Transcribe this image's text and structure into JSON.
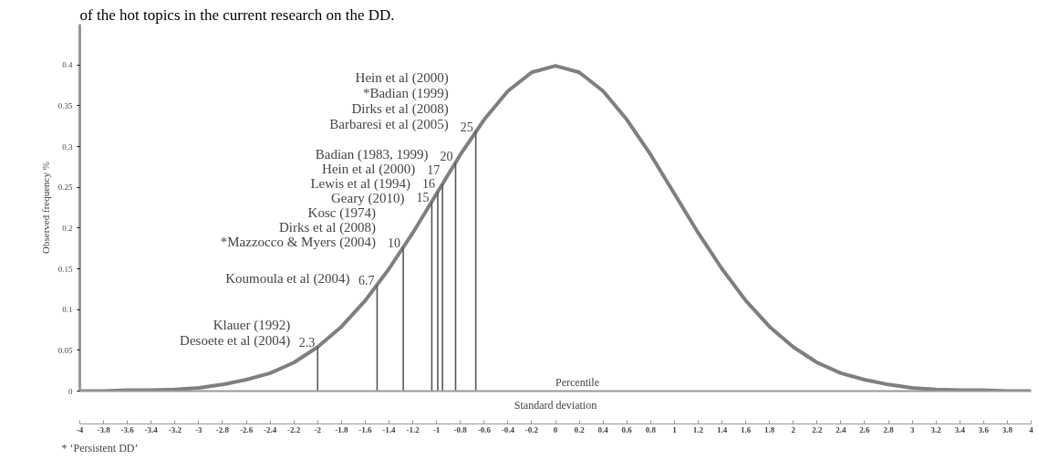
{
  "chart_data": {
    "type": "line",
    "xlabel": "Standard deviation",
    "ylabel": "Observed frequency %",
    "x": [
      -4,
      -3.8,
      -3.6,
      -3.4,
      -3.2,
      -3,
      -2.8,
      -2.6,
      -2.4,
      -2.2,
      -2,
      -1.8,
      -1.6,
      -1.4,
      -1.2,
      -1,
      -0.8,
      -0.6,
      -0.4,
      -0.2,
      0,
      0.2,
      0.4,
      0.6,
      0.8,
      1,
      1.2,
      1.4,
      1.6,
      1.8,
      2,
      2.2,
      2.4,
      2.6,
      2.8,
      3,
      3.2,
      3.4,
      3.6,
      3.8,
      4
    ],
    "series": [
      {
        "color": "#7f7f7f",
        "values": [
          0.0,
          0.0,
          0.001,
          0.001,
          0.002,
          0.004,
          0.008,
          0.014,
          0.022,
          0.035,
          0.054,
          0.079,
          0.111,
          0.15,
          0.194,
          0.242,
          0.29,
          0.333,
          0.368,
          0.391,
          0.399,
          0.391,
          0.368,
          0.333,
          0.29,
          0.242,
          0.194,
          0.15,
          0.111,
          0.079,
          0.054,
          0.035,
          0.022,
          0.014,
          0.008,
          0.004,
          0.002,
          0.001,
          0.001,
          0.0,
          0.0
        ]
      },
      {
        "type": "bar",
        "color": "#555555",
        "x": [
          -2,
          -1.5,
          -1.28,
          -1.04,
          -0.99,
          -0.95,
          -0.84,
          -0.67
        ],
        "values": [
          0.054,
          0.13,
          0.176,
          0.232,
          0.244,
          0.254,
          0.28,
          0.319
        ]
      }
    ],
    "xlim": [
      -4,
      4
    ],
    "ylim": [
      0,
      0.45
    ],
    "xticks": [
      -4,
      -3.8,
      -3.6,
      -3.4,
      -3.2,
      -3,
      -2.8,
      -2.6,
      -2.4,
      -2.2,
      -2,
      -1.8,
      -1.6,
      -1.4,
      -1.2,
      -1,
      -0.8,
      -0.6,
      -0.4,
      -0.2,
      0,
      0.2,
      0.4,
      0.6,
      0.8,
      1,
      1.2,
      1.4,
      1.6,
      1.8,
      2,
      2.2,
      2.4,
      2.6,
      2.8,
      3,
      3.2,
      3.4,
      3.6,
      3.8,
      4
    ],
    "yticks": [
      0,
      0.05,
      0.1,
      0.15,
      0.2,
      0.25,
      0.3,
      0.35,
      0.4
    ],
    "grid": false,
    "marker": "none",
    "line_style": "solid",
    "annotations": [
      "of the hot topics in the current research on the DD.",
      "Percentile",
      "* ‘Persistent DD’",
      {
        "text": "25",
        "x": -0.67,
        "y": 0.319
      },
      "Hein et al (2000)",
      "*Badian (1999)",
      "Dirks et al (2008)",
      "Barbaresi et al (2005)",
      {
        "text": "20",
        "x": -0.84,
        "y": 0.28
      },
      "Badian (1983, 1999)",
      {
        "text": "17",
        "x": -0.95,
        "y": 0.254
      },
      "Hein et al (2000)",
      {
        "text": "16",
        "x": -0.99,
        "y": 0.244
      },
      "Lewis et al (1994)",
      {
        "text": "15",
        "x": -1.04,
        "y": 0.232
      },
      "Geary (2010)",
      {
        "text": "10",
        "x": -1.28,
        "y": 0.176
      },
      "Kosc (1974)",
      "Dirks et al (2008)",
      "*Mazzocco & Myers (2004)",
      {
        "text": "6.7",
        "x": -1.5,
        "y": 0.13
      },
      "Koumoula et al (2004)",
      {
        "text": "2.3",
        "x": -2,
        "y": 0.054
      },
      "Klauer (1992)",
      "Desoete et al (2004)"
    ]
  }
}
